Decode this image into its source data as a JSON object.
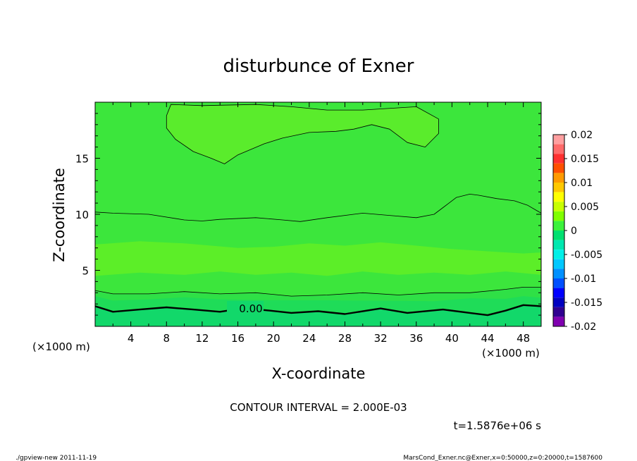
{
  "chart_data": {
    "type": "heatmap",
    "title": "disturbunce of Exner",
    "xlabel": "X-coordinate",
    "ylabel": "Z-coordinate",
    "x_unit_left": "(×1000 m)",
    "x_unit_right": "(×1000 m)",
    "xlim": [
      0,
      50
    ],
    "ylim": [
      0,
      20
    ],
    "x_ticks": [
      4,
      8,
      12,
      16,
      20,
      24,
      28,
      32,
      36,
      40,
      44,
      48
    ],
    "y_ticks": [
      5,
      10,
      15
    ],
    "colorbar": {
      "ticks": [
        "0.02",
        "0.015",
        "0.01",
        "0.005",
        "0",
        "-0.005",
        "-0.01",
        "-0.015",
        "-0.02"
      ],
      "bands": [
        {
          "from": 0.018,
          "to": 0.02,
          "color": "#ff9fa0"
        },
        {
          "from": 0.016,
          "to": 0.018,
          "color": "#ff6a6a"
        },
        {
          "from": 0.014,
          "to": 0.016,
          "color": "#ff3030"
        },
        {
          "from": 0.012,
          "to": 0.014,
          "color": "#ff5000"
        },
        {
          "from": 0.01,
          "to": 0.012,
          "color": "#ff9a00"
        },
        {
          "from": 0.008,
          "to": 0.01,
          "color": "#ffc800"
        },
        {
          "from": 0.006,
          "to": 0.008,
          "color": "#ffff00"
        },
        {
          "from": 0.004,
          "to": 0.006,
          "color": "#c8ff00"
        },
        {
          "from": 0.002,
          "to": 0.004,
          "color": "#80ff00"
        },
        {
          "from": 0.0,
          "to": 0.002,
          "color": "#3cf23c"
        },
        {
          "from": -0.002,
          "to": 0.0,
          "color": "#00e070"
        },
        {
          "from": -0.004,
          "to": -0.002,
          "color": "#00e8b0"
        },
        {
          "from": -0.006,
          "to": -0.004,
          "color": "#00f0e8"
        },
        {
          "from": -0.008,
          "to": -0.006,
          "color": "#00c8ff"
        },
        {
          "from": -0.01,
          "to": -0.008,
          "color": "#0090ff"
        },
        {
          "from": -0.012,
          "to": -0.01,
          "color": "#0050ff"
        },
        {
          "from": -0.014,
          "to": -0.012,
          "color": "#0000ff"
        },
        {
          "from": -0.016,
          "to": -0.014,
          "color": "#0000c0"
        },
        {
          "from": -0.018,
          "to": -0.016,
          "color": "#300090"
        },
        {
          "from": -0.02,
          "to": -0.018,
          "color": "#8000b0"
        }
      ]
    },
    "field_colors": {
      "base": "#3ce63c",
      "mid_band": "#5cee28",
      "upper_blob": "#5aec2c",
      "lower_1": "#2fe046",
      "lower_2": "#1fdc58",
      "lower_3": "#12d86a"
    },
    "contour_label": "0.00",
    "contour_lines": [
      {
        "name": "zero-contour",
        "bold": true,
        "points": [
          [
            0,
            1.8
          ],
          [
            2,
            1.3
          ],
          [
            5,
            1.5
          ],
          [
            8,
            1.7
          ],
          [
            11,
            1.5
          ],
          [
            14,
            1.3
          ],
          [
            16,
            1.55
          ],
          [
            19,
            1.45
          ],
          [
            22,
            1.2
          ],
          [
            25,
            1.35
          ],
          [
            28,
            1.1
          ],
          [
            32,
            1.6
          ],
          [
            35,
            1.2
          ],
          [
            39,
            1.5
          ],
          [
            42,
            1.2
          ],
          [
            44,
            1.0
          ],
          [
            46,
            1.4
          ],
          [
            48,
            1.9
          ],
          [
            50,
            1.8
          ]
        ]
      },
      {
        "name": "lower-contour",
        "points": [
          [
            0,
            3.2
          ],
          [
            2,
            2.9
          ],
          [
            6,
            2.9
          ],
          [
            10,
            3.1
          ],
          [
            14,
            2.9
          ],
          [
            18,
            3.0
          ],
          [
            22,
            2.7
          ],
          [
            26,
            2.8
          ],
          [
            30,
            3.0
          ],
          [
            34,
            2.8
          ],
          [
            38,
            3.0
          ],
          [
            42,
            3.0
          ],
          [
            46,
            3.3
          ],
          [
            48,
            3.5
          ],
          [
            50,
            3.5
          ]
        ]
      },
      {
        "name": "mid-contour",
        "points": [
          [
            0,
            10.2
          ],
          [
            2,
            10.1
          ],
          [
            6,
            10.0
          ],
          [
            10,
            9.5
          ],
          [
            12,
            9.4
          ],
          [
            14,
            9.55
          ],
          [
            18,
            9.7
          ],
          [
            21,
            9.5
          ],
          [
            23,
            9.35
          ],
          [
            26,
            9.7
          ],
          [
            30,
            10.1
          ],
          [
            33,
            9.9
          ],
          [
            36,
            9.7
          ],
          [
            38,
            10.0
          ],
          [
            39,
            10.6
          ],
          [
            40.5,
            11.5
          ],
          [
            42,
            11.8
          ],
          [
            43,
            11.7
          ],
          [
            45,
            11.4
          ],
          [
            47,
            11.2
          ],
          [
            48.5,
            10.8
          ],
          [
            50,
            10.1
          ]
        ]
      },
      {
        "name": "upper-contour",
        "closed": true,
        "points": [
          [
            8,
            18.8
          ],
          [
            8.5,
            19.8
          ],
          [
            12,
            19.7
          ],
          [
            18,
            19.8
          ],
          [
            22,
            19.6
          ],
          [
            26,
            19.3
          ],
          [
            30,
            19.3
          ],
          [
            36,
            19.6
          ],
          [
            38.5,
            18.5
          ],
          [
            38.5,
            17.2
          ],
          [
            37,
            16.0
          ],
          [
            35,
            16.4
          ],
          [
            33,
            17.6
          ],
          [
            31,
            18.0
          ],
          [
            29,
            17.6
          ],
          [
            27,
            17.4
          ],
          [
            24,
            17.3
          ],
          [
            21,
            16.8
          ],
          [
            19,
            16.3
          ],
          [
            16,
            15.3
          ],
          [
            14.5,
            14.5
          ],
          [
            13,
            15.0
          ],
          [
            11,
            15.6
          ],
          [
            9,
            16.7
          ],
          [
            8,
            17.7
          ]
        ]
      }
    ]
  },
  "annotations": {
    "contour_interval": "CONTOUR INTERVAL = 2.000E-03",
    "time": "t=1.5876e+06 s",
    "footer_left": "./gpview-new   2011-11-19",
    "footer_right": "MarsCond_Exner.nc@Exner,x=0:50000,z=0:20000,t=1587600"
  }
}
